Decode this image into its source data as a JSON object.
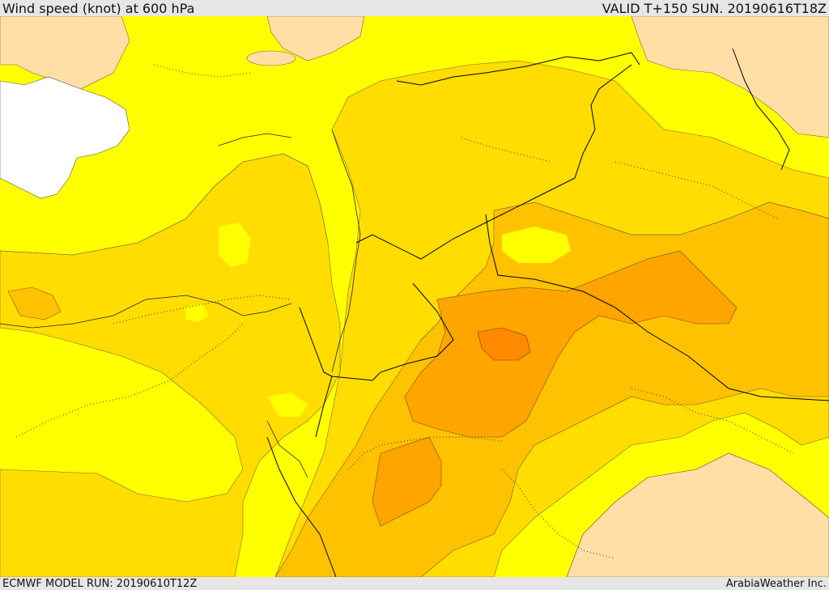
{
  "header": {
    "title": "Wind speed (knot) at 600 hPa",
    "valid": "VALID T+150 SUN. 20190616T18Z"
  },
  "footer": {
    "model_run": "ECMWF MODEL RUN: 20190610T12Z",
    "credit": "ArabiaWeather Inc."
  },
  "colors": {
    "sea_white": "#ffffff",
    "band_light": "#ffdfa6",
    "band_yellow": "#ffff00",
    "band_gold": "#ffdd00",
    "band_amber": "#ffc200",
    "band_orange": "#ffa500",
    "band_dark_orange": "#ff8a00",
    "band_deep": "#ff7a00",
    "border_line": "#000000",
    "dotted_line": "#333333"
  }
}
